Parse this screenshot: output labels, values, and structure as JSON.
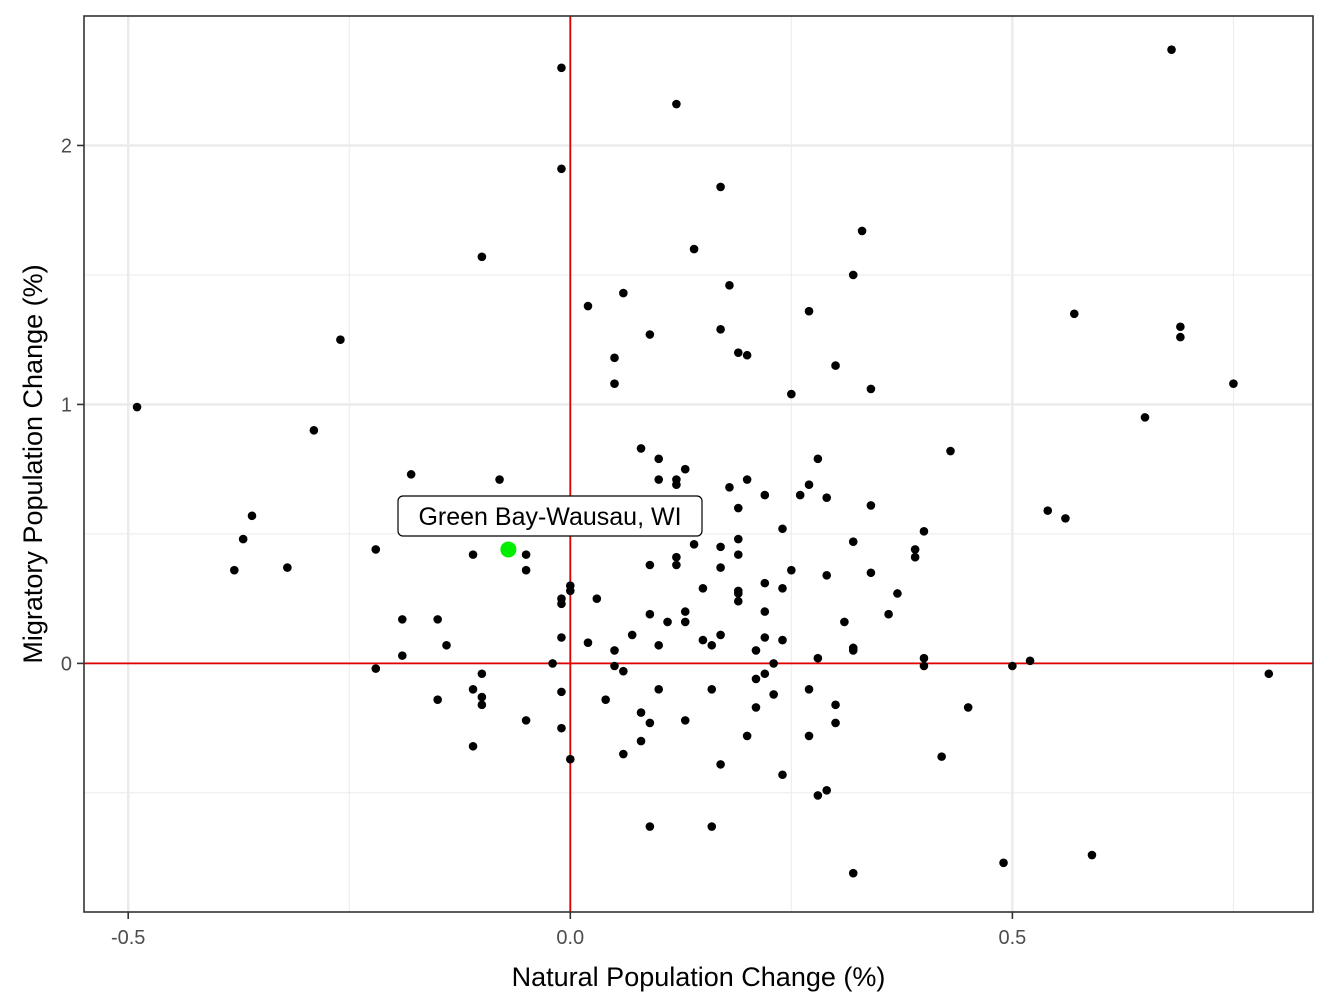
{
  "chart_data": {
    "type": "scatter",
    "xlabel": "Natural Population Change (%)",
    "ylabel": "Migratory Population Change (%)",
    "xlim": [
      -0.55,
      0.84
    ],
    "ylim": [
      -0.96,
      2.5
    ],
    "x_ticks": [
      {
        "value": -0.5,
        "label": "-0.5"
      },
      {
        "value": 0.0,
        "label": "0.0"
      },
      {
        "value": 0.5,
        "label": "0.5"
      }
    ],
    "y_ticks": [
      {
        "value": 0,
        "label": "0"
      },
      {
        "value": 1,
        "label": "1"
      },
      {
        "value": 2,
        "label": "2"
      }
    ],
    "x_minor": [
      -0.25,
      0.25,
      0.75
    ],
    "y_minor": [
      -0.5,
      0.5,
      1.5
    ],
    "grid": true,
    "reference_lines": {
      "x": 0,
      "y": 0,
      "color": "#e00000"
    },
    "point_color": "#000000",
    "highlight": {
      "label": "Green Bay-Wausau, WI",
      "x": -0.07,
      "y": 0.44,
      "color": "#00ee00"
    },
    "points": [
      [
        -0.49,
        0.99
      ],
      [
        -0.38,
        0.36
      ],
      [
        -0.37,
        0.48
      ],
      [
        -0.36,
        0.57
      ],
      [
        -0.32,
        0.37
      ],
      [
        -0.29,
        0.9
      ],
      [
        -0.26,
        1.25
      ],
      [
        -0.22,
        0.44
      ],
      [
        -0.22,
        -0.02
      ],
      [
        -0.19,
        0.17
      ],
      [
        -0.19,
        0.03
      ],
      [
        -0.18,
        0.73
      ],
      [
        -0.15,
        0.17
      ],
      [
        -0.15,
        -0.14
      ],
      [
        -0.14,
        0.07
      ],
      [
        -0.11,
        0.42
      ],
      [
        -0.11,
        -0.1
      ],
      [
        -0.11,
        -0.32
      ],
      [
        -0.1,
        1.57
      ],
      [
        -0.1,
        -0.04
      ],
      [
        -0.1,
        -0.13
      ],
      [
        -0.1,
        -0.16
      ],
      [
        -0.08,
        0.71
      ],
      [
        -0.05,
        0.42
      ],
      [
        -0.05,
        0.36
      ],
      [
        -0.05,
        -0.22
      ],
      [
        -0.02,
        0.0
      ],
      [
        -0.01,
        2.3
      ],
      [
        -0.01,
        1.91
      ],
      [
        -0.01,
        0.25
      ],
      [
        -0.01,
        0.23
      ],
      [
        -0.01,
        0.1
      ],
      [
        -0.01,
        -0.11
      ],
      [
        -0.01,
        -0.25
      ],
      [
        0.0,
        0.3
      ],
      [
        0.0,
        0.28
      ],
      [
        0.0,
        -0.37
      ],
      [
        0.02,
        1.38
      ],
      [
        0.02,
        0.08
      ],
      [
        0.03,
        0.25
      ],
      [
        0.04,
        -0.14
      ],
      [
        0.05,
        1.18
      ],
      [
        0.05,
        1.08
      ],
      [
        0.05,
        0.05
      ],
      [
        0.05,
        -0.01
      ],
      [
        0.06,
        1.43
      ],
      [
        0.06,
        -0.03
      ],
      [
        0.06,
        -0.35
      ],
      [
        0.07,
        0.11
      ],
      [
        0.08,
        0.83
      ],
      [
        0.08,
        -0.19
      ],
      [
        0.08,
        -0.3
      ],
      [
        0.09,
        1.27
      ],
      [
        0.09,
        0.38
      ],
      [
        0.09,
        0.19
      ],
      [
        0.09,
        -0.23
      ],
      [
        0.09,
        -0.63
      ],
      [
        0.1,
        0.79
      ],
      [
        0.1,
        0.71
      ],
      [
        0.1,
        0.07
      ],
      [
        0.1,
        -0.1
      ],
      [
        0.11,
        0.16
      ],
      [
        0.12,
        2.16
      ],
      [
        0.12,
        0.71
      ],
      [
        0.12,
        0.69
      ],
      [
        0.12,
        0.41
      ],
      [
        0.12,
        0.38
      ],
      [
        0.13,
        0.75
      ],
      [
        0.13,
        0.2
      ],
      [
        0.13,
        0.16
      ],
      [
        0.13,
        -0.22
      ],
      [
        0.14,
        1.6
      ],
      [
        0.14,
        0.46
      ],
      [
        0.15,
        0.29
      ],
      [
        0.15,
        0.09
      ],
      [
        0.16,
        0.07
      ],
      [
        0.16,
        -0.1
      ],
      [
        0.16,
        -0.63
      ],
      [
        0.17,
        1.84
      ],
      [
        0.17,
        1.29
      ],
      [
        0.17,
        0.45
      ],
      [
        0.17,
        0.37
      ],
      [
        0.17,
        0.11
      ],
      [
        0.17,
        -0.39
      ],
      [
        0.18,
        1.46
      ],
      [
        0.18,
        0.68
      ],
      [
        0.19,
        1.2
      ],
      [
        0.19,
        0.6
      ],
      [
        0.19,
        0.48
      ],
      [
        0.19,
        0.42
      ],
      [
        0.19,
        0.28
      ],
      [
        0.19,
        0.27
      ],
      [
        0.19,
        0.24
      ],
      [
        0.2,
        1.19
      ],
      [
        0.2,
        0.71
      ],
      [
        0.2,
        -0.28
      ],
      [
        0.21,
        0.05
      ],
      [
        0.21,
        -0.06
      ],
      [
        0.21,
        -0.17
      ],
      [
        0.22,
        0.65
      ],
      [
        0.22,
        0.31
      ],
      [
        0.22,
        0.2
      ],
      [
        0.22,
        0.1
      ],
      [
        0.22,
        -0.04
      ],
      [
        0.23,
        0.0
      ],
      [
        0.23,
        -0.12
      ],
      [
        0.24,
        0.52
      ],
      [
        0.24,
        0.29
      ],
      [
        0.24,
        0.09
      ],
      [
        0.24,
        -0.43
      ],
      [
        0.25,
        1.04
      ],
      [
        0.25,
        0.36
      ],
      [
        0.26,
        0.65
      ],
      [
        0.27,
        1.36
      ],
      [
        0.27,
        0.69
      ],
      [
        0.27,
        -0.1
      ],
      [
        0.27,
        -0.28
      ],
      [
        0.28,
        0.79
      ],
      [
        0.28,
        0.02
      ],
      [
        0.28,
        -0.51
      ],
      [
        0.29,
        0.64
      ],
      [
        0.29,
        0.34
      ],
      [
        0.29,
        -0.49
      ],
      [
        0.3,
        1.15
      ],
      [
        0.3,
        -0.16
      ],
      [
        0.3,
        -0.23
      ],
      [
        0.31,
        0.16
      ],
      [
        0.32,
        1.5
      ],
      [
        0.32,
        0.47
      ],
      [
        0.32,
        0.06
      ],
      [
        0.32,
        0.05
      ],
      [
        0.32,
        -0.81
      ],
      [
        0.33,
        1.67
      ],
      [
        0.34,
        1.06
      ],
      [
        0.34,
        0.61
      ],
      [
        0.34,
        0.35
      ],
      [
        0.36,
        0.19
      ],
      [
        0.37,
        0.27
      ],
      [
        0.39,
        0.44
      ],
      [
        0.39,
        0.41
      ],
      [
        0.4,
        0.51
      ],
      [
        0.4,
        0.02
      ],
      [
        0.4,
        -0.01
      ],
      [
        0.42,
        -0.36
      ],
      [
        0.43,
        0.82
      ],
      [
        0.45,
        -0.17
      ],
      [
        0.49,
        -0.77
      ],
      [
        0.5,
        -0.01
      ],
      [
        0.52,
        0.01
      ],
      [
        0.54,
        0.59
      ],
      [
        0.56,
        0.56
      ],
      [
        0.57,
        1.35
      ],
      [
        0.59,
        -0.74
      ],
      [
        0.65,
        0.95
      ],
      [
        0.68,
        2.37
      ],
      [
        0.69,
        1.3
      ],
      [
        0.69,
        1.26
      ],
      [
        0.75,
        1.08
      ],
      [
        0.79,
        -0.04
      ]
    ]
  }
}
